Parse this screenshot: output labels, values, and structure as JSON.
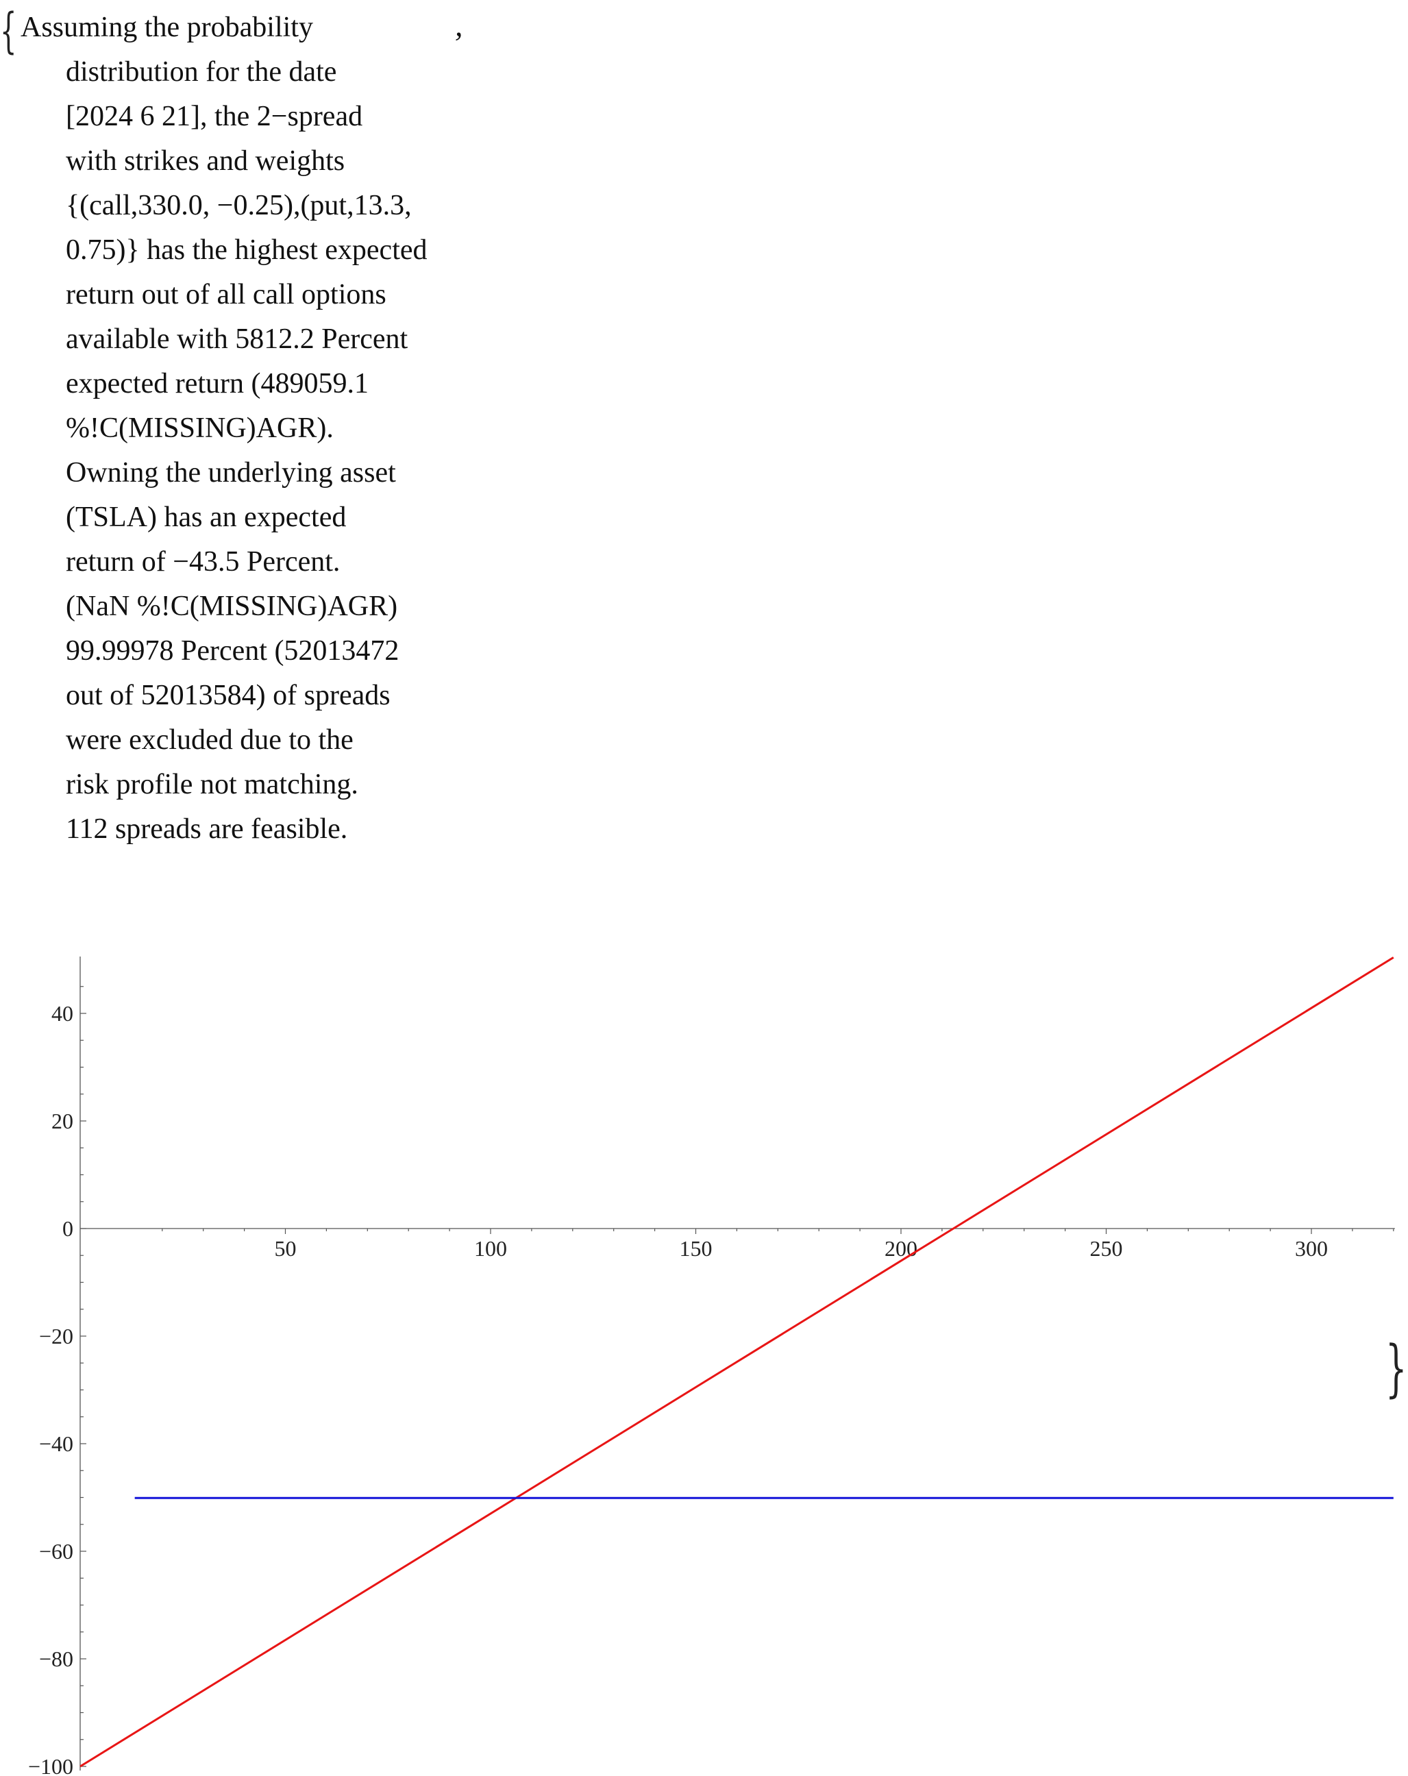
{
  "text": {
    "brace_open": "{",
    "brace_close": "}",
    "comma": ",",
    "lines": [
      "Assuming the probability",
      "distribution for the date",
      "[2024 6 21], the 2−spread",
      "with strikes and weights",
      "{(call,330.0, −0.25),(put,13.3,",
      "0.75)} has the highest expected",
      "return out of all call options",
      "available with 5812.2 Percent",
      "expected return (489059.1",
      "%!C(MISSING)AGR).",
      "Owning the underlying asset",
      "(TSLA) has an expected",
      "return of −43.5 Percent.",
      "(NaN %!C(MISSING)AGR)",
      "99.99978 Percent (52013472",
      "out of 52013584) of spreads",
      "were excluded due to the",
      "risk profile not matching.",
      "112 spreads are feasible."
    ]
  },
  "chart_data": {
    "type": "line",
    "title": "",
    "xlabel": "",
    "ylabel": "",
    "xlim": [
      0,
      320
    ],
    "ylim": [
      -100,
      50
    ],
    "x_ticks": [
      50,
      100,
      150,
      200,
      250,
      300
    ],
    "x_tick_labels": [
      "50",
      "100",
      "150",
      "200",
      "250",
      "300"
    ],
    "y_ticks": [
      40,
      20,
      0,
      -20,
      -40,
      -60,
      -80,
      -100
    ],
    "y_tick_labels": [
      "40",
      "20",
      "0",
      "−20",
      "−40",
      "−60",
      "−80",
      "−100"
    ],
    "grid": false,
    "series": [
      {
        "color": "#e81515",
        "x": [
          0,
          320
        ],
        "y": [
          -100,
          50.4
        ]
      },
      {
        "color": "#1414d8",
        "x": [
          13.3,
          320
        ],
        "y": [
          -50.1,
          -50.1
        ]
      }
    ]
  }
}
